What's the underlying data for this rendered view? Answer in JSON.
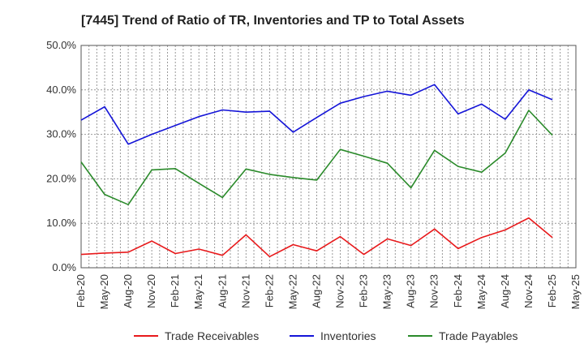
{
  "chart_data": {
    "type": "line",
    "title": "[7445]  Trend of Ratio of TR, Inventories and TP to Total Assets",
    "x": [
      "Feb-20",
      "May-20",
      "Aug-20",
      "Nov-20",
      "Feb-21",
      "May-21",
      "Aug-21",
      "Nov-21",
      "Feb-22",
      "May-22",
      "Aug-22",
      "Nov-22",
      "Feb-23",
      "May-23",
      "Aug-23",
      "Nov-23",
      "Feb-24",
      "May-24",
      "Aug-24",
      "Nov-24",
      "Feb-25"
    ],
    "x_ticks": [
      "Feb-20",
      "May-20",
      "Aug-20",
      "Nov-20",
      "Feb-21",
      "May-21",
      "Aug-21",
      "Nov-21",
      "Feb-22",
      "May-22",
      "Aug-22",
      "Nov-22",
      "Feb-23",
      "May-23",
      "Aug-23",
      "Nov-23",
      "Feb-24",
      "May-24",
      "Aug-24",
      "Nov-24",
      "Feb-25",
      "May-25"
    ],
    "y_ticks": [
      "0.0%",
      "10.0%",
      "20.0%",
      "30.0%",
      "40.0%",
      "50.0%"
    ],
    "ylim": [
      0,
      50
    ],
    "grid": true,
    "legend_position": "bottom",
    "series": [
      {
        "name": "Trade Receivables",
        "color": "#e8191b",
        "values": [
          3.0,
          3.3,
          3.5,
          6.0,
          3.2,
          4.2,
          2.8,
          7.4,
          2.5,
          5.2,
          3.8,
          7.0,
          3.0,
          6.5,
          5.0,
          8.7,
          4.3,
          6.8,
          8.5,
          11.2,
          6.8
        ]
      },
      {
        "name": "Inventories",
        "color": "#1414d8",
        "values": [
          33.2,
          36.2,
          27.8,
          30.0,
          32.0,
          34.0,
          35.5,
          35.0,
          35.2,
          30.5,
          33.8,
          37.0,
          38.5,
          39.7,
          38.8,
          41.2,
          34.6,
          36.8,
          33.4,
          40.0,
          37.8
        ]
      },
      {
        "name": "Trade Payables",
        "color": "#2a8a2a",
        "values": [
          23.8,
          16.5,
          14.2,
          22.0,
          22.3,
          19.0,
          15.8,
          22.2,
          21.0,
          20.3,
          19.7,
          26.6,
          25.1,
          23.5,
          18.0,
          26.4,
          22.8,
          21.5,
          25.8,
          35.4,
          29.8
        ]
      }
    ]
  }
}
